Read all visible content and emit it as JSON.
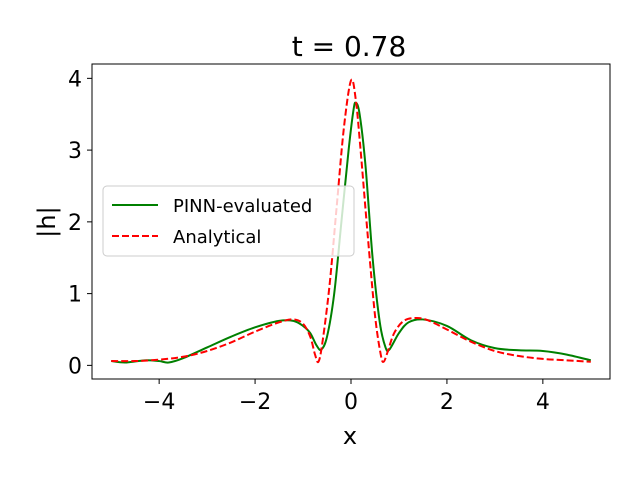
{
  "chart_data": {
    "type": "line",
    "title": "t = 0.78",
    "xlabel": "x",
    "ylabel": "|h|",
    "xlim": [
      -5.4,
      5.4
    ],
    "ylim": [
      -0.19,
      4.2
    ],
    "xticks": [
      -4,
      -2,
      0,
      2,
      4
    ],
    "xtick_labels": [
      "−4",
      "−2",
      "0",
      "2",
      "4"
    ],
    "yticks": [
      0,
      1,
      2,
      3,
      4
    ],
    "ytick_labels": [
      "0",
      "1",
      "2",
      "3",
      "4"
    ],
    "grid": false,
    "legend_position": "center-left",
    "series": [
      {
        "name": "PINN-evaluated",
        "color": "#008000",
        "dash": "solid",
        "points": [
          [
            -5,
            0.06
          ],
          [
            -4.7,
            0.04
          ],
          [
            -4.3,
            0.07
          ],
          [
            -4,
            0.06
          ],
          [
            -3.8,
            0.04
          ],
          [
            -3.5,
            0.1
          ],
          [
            -3,
            0.25
          ],
          [
            -2.5,
            0.4
          ],
          [
            -2,
            0.53
          ],
          [
            -1.5,
            0.62
          ],
          [
            -1.2,
            0.62
          ],
          [
            -1,
            0.55
          ],
          [
            -0.85,
            0.45
          ],
          [
            -0.72,
            0.28
          ],
          [
            -0.62,
            0.22
          ],
          [
            -0.5,
            0.4
          ],
          [
            -0.35,
            1.0
          ],
          [
            -0.2,
            2.0
          ],
          [
            -0.05,
            3.0
          ],
          [
            0.05,
            3.55
          ],
          [
            0.1,
            3.66
          ],
          [
            0.18,
            3.5
          ],
          [
            0.3,
            2.8
          ],
          [
            0.45,
            1.5
          ],
          [
            0.6,
            0.6
          ],
          [
            0.72,
            0.25
          ],
          [
            0.8,
            0.22
          ],
          [
            1,
            0.45
          ],
          [
            1.2,
            0.6
          ],
          [
            1.5,
            0.64
          ],
          [
            2,
            0.55
          ],
          [
            2.5,
            0.35
          ],
          [
            3,
            0.24
          ],
          [
            3.5,
            0.21
          ],
          [
            4,
            0.2
          ],
          [
            4.5,
            0.15
          ],
          [
            5,
            0.07
          ]
        ]
      },
      {
        "name": "Analytical",
        "color": "#ff0000",
        "dash": "dashed",
        "points": [
          [
            -5,
            0.06
          ],
          [
            -4.5,
            0.06
          ],
          [
            -4,
            0.08
          ],
          [
            -3.5,
            0.12
          ],
          [
            -3,
            0.2
          ],
          [
            -2.5,
            0.32
          ],
          [
            -2,
            0.47
          ],
          [
            -1.5,
            0.6
          ],
          [
            -1.2,
            0.64
          ],
          [
            -1,
            0.58
          ],
          [
            -0.85,
            0.4
          ],
          [
            -0.75,
            0.15
          ],
          [
            -0.68,
            0.05
          ],
          [
            -0.6,
            0.3
          ],
          [
            -0.45,
            1.1
          ],
          [
            -0.3,
            2.2
          ],
          [
            -0.15,
            3.3
          ],
          [
            0,
            3.97
          ],
          [
            0.1,
            3.7
          ],
          [
            0.2,
            3.0
          ],
          [
            0.35,
            1.8
          ],
          [
            0.5,
            0.7
          ],
          [
            0.62,
            0.15
          ],
          [
            0.68,
            0.05
          ],
          [
            0.76,
            0.18
          ],
          [
            0.9,
            0.45
          ],
          [
            1.1,
            0.62
          ],
          [
            1.35,
            0.66
          ],
          [
            1.6,
            0.63
          ],
          [
            2,
            0.5
          ],
          [
            2.5,
            0.33
          ],
          [
            3,
            0.2
          ],
          [
            3.5,
            0.13
          ],
          [
            4,
            0.09
          ],
          [
            4.5,
            0.07
          ],
          [
            5,
            0.05
          ]
        ]
      }
    ]
  }
}
